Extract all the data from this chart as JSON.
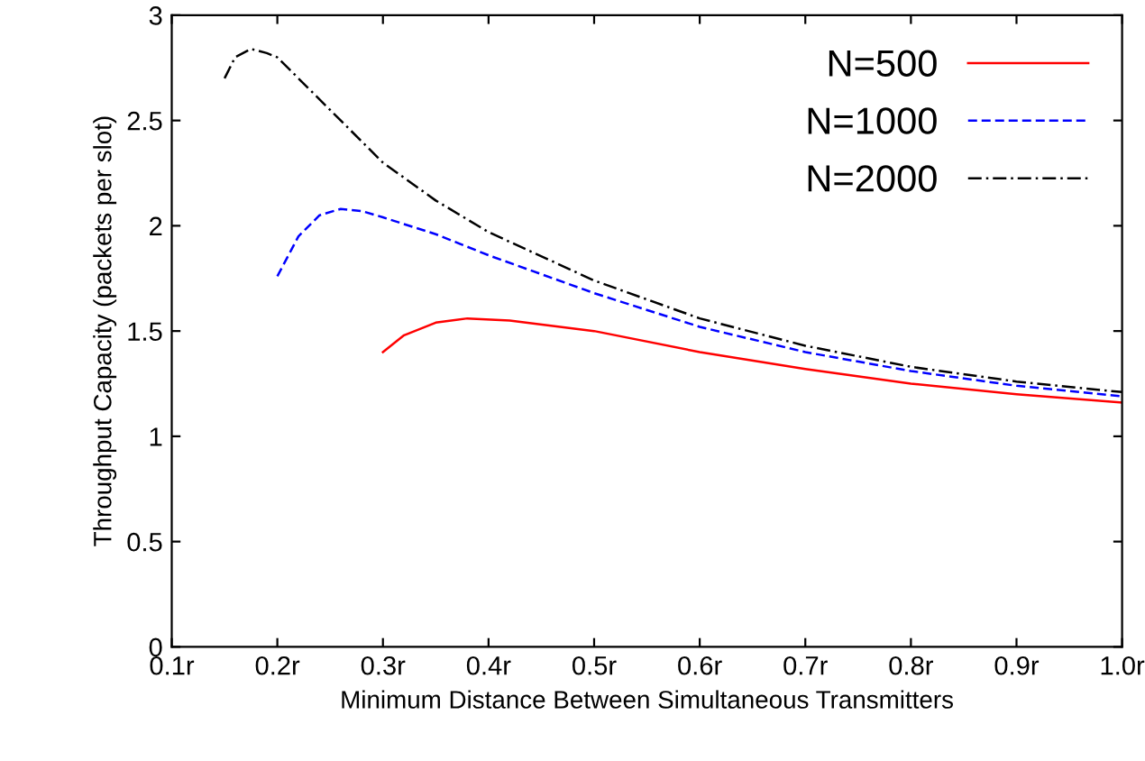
{
  "chart_data": {
    "type": "line",
    "xlabel": "Minimum Distance Between Simultaneous Transmitters",
    "ylabel": "Throughput Capacity (packets per slot)",
    "xlim": [
      0.1,
      1.0
    ],
    "ylim": [
      0,
      3
    ],
    "xticks": [
      {
        "value": 0.1,
        "label": "0.1r"
      },
      {
        "value": 0.2,
        "label": "0.2r"
      },
      {
        "value": 0.3,
        "label": "0.3r"
      },
      {
        "value": 0.4,
        "label": "0.4r"
      },
      {
        "value": 0.5,
        "label": "0.5r"
      },
      {
        "value": 0.6,
        "label": "0.6r"
      },
      {
        "value": 0.7,
        "label": "0.7r"
      },
      {
        "value": 0.8,
        "label": "0.8r"
      },
      {
        "value": 0.9,
        "label": "0.9r"
      },
      {
        "value": 1.0,
        "label": "1.0r"
      }
    ],
    "yticks": [
      0,
      0.5,
      1,
      1.5,
      2,
      2.5,
      3
    ],
    "grid": false,
    "legend": "top right",
    "marker": "none",
    "series": [
      {
        "name": "N=500",
        "color": "#ff0000",
        "line_style": "solid",
        "x": [
          0.3,
          0.32,
          0.35,
          0.38,
          0.42,
          0.5,
          0.6,
          0.7,
          0.8,
          0.9,
          1.0
        ],
        "values": [
          1.4,
          1.48,
          1.54,
          1.56,
          1.55,
          1.5,
          1.4,
          1.32,
          1.25,
          1.2,
          1.16
        ]
      },
      {
        "name": "N=1000",
        "color": "#0000ff",
        "line_style": "dashed",
        "x": [
          0.2,
          0.22,
          0.24,
          0.26,
          0.28,
          0.3,
          0.35,
          0.4,
          0.5,
          0.6,
          0.7,
          0.8,
          0.9,
          1.0
        ],
        "values": [
          1.76,
          1.95,
          2.05,
          2.08,
          2.07,
          2.04,
          1.96,
          1.86,
          1.68,
          1.52,
          1.4,
          1.31,
          1.24,
          1.19
        ]
      },
      {
        "name": "N=2000",
        "color": "#000000",
        "line_style": "dashdot",
        "x": [
          0.15,
          0.16,
          0.175,
          0.19,
          0.2,
          0.25,
          0.3,
          0.35,
          0.4,
          0.5,
          0.6,
          0.7,
          0.8,
          0.9,
          1.0
        ],
        "values": [
          2.7,
          2.8,
          2.84,
          2.82,
          2.8,
          2.55,
          2.3,
          2.12,
          1.97,
          1.74,
          1.56,
          1.43,
          1.33,
          1.26,
          1.21
        ]
      }
    ]
  }
}
